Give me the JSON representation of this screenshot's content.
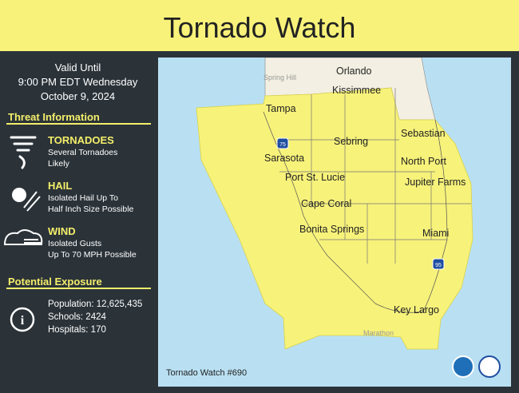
{
  "header": {
    "title": "Tornado Watch"
  },
  "sidebar": {
    "valid_until": [
      "Valid Until",
      "9:00 PM EDT Wednesday",
      "October 9, 2024"
    ],
    "threat_heading": "Threat Information",
    "threats": [
      {
        "name": "TORNADOES",
        "description": [
          "Several Tornadoes",
          "Likely"
        ]
      },
      {
        "name": "HAIL",
        "description": [
          "Isolated Hail Up To",
          "Half Inch Size Possible"
        ]
      },
      {
        "name": "WIND",
        "description": [
          "Isolated Gusts",
          "Up To 70 MPH Possible"
        ]
      }
    ],
    "exposure_heading": "Potential Exposure",
    "exposure": [
      "Population: 12,625,435",
      "Schools: 2424",
      "Hospitals: 170"
    ]
  },
  "map": {
    "cities": [
      "Orlando",
      "Spring Hill",
      "Kissimmee",
      "Tampa",
      "Sebastian",
      "Sebring",
      "Sarasota",
      "Port St. Lucie",
      "North Port",
      "Jupiter Farms",
      "Cape Coral",
      "Bonita Springs",
      "Miami",
      "Key Largo",
      "Marathon"
    ],
    "highways": [
      "75",
      "95"
    ],
    "footer": "Tornado Watch #690"
  }
}
